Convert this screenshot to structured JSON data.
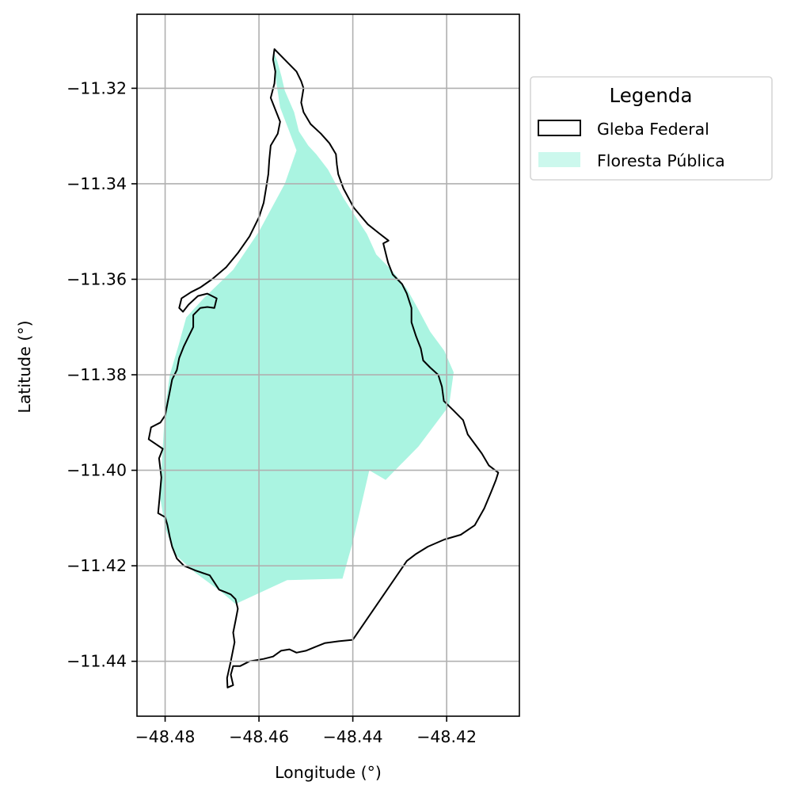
{
  "chart_data": {
    "type": "map",
    "xlabel": "Longitude (°)",
    "ylabel": "Latitude (°)",
    "xlim": [
      -48.486,
      -48.4045
    ],
    "ylim": [
      -11.4515,
      -11.3045
    ],
    "xticks": [
      -48.48,
      -48.46,
      -48.44,
      -48.42
    ],
    "xtick_labels": [
      "−48.48",
      "−48.46",
      "−48.44",
      "−48.42"
    ],
    "yticks": [
      -11.32,
      -11.34,
      -11.36,
      -11.38,
      -11.4,
      -11.42,
      -11.44
    ],
    "ytick_labels": [
      "−11.32",
      "−11.34",
      "−11.36",
      "−11.38",
      "−11.40",
      "−11.42",
      "−11.44"
    ],
    "grid": true,
    "legend": {
      "title": "Legenda",
      "placement": "outside upper right",
      "entries": [
        {
          "label": "Gleba Federal",
          "style": "outline"
        },
        {
          "label": "Floresta Pública",
          "style": "fill"
        }
      ]
    },
    "colors": {
      "gleba_edge": "#000000",
      "floresta_fill": "#aaf4e1",
      "floresta_legend": "#ccf8ed",
      "grid": "#b0b0b0"
    },
    "layers": [
      {
        "name": "Floresta Pública",
        "coords": [
          [
            -48.4569,
            -11.3123
          ],
          [
            -48.4561,
            -11.3143
          ],
          [
            -48.4552,
            -11.3175
          ],
          [
            -48.4545,
            -11.3205
          ],
          [
            -48.4525,
            -11.325
          ],
          [
            -48.4515,
            -11.329
          ],
          [
            -48.4495,
            -11.332
          ],
          [
            -48.4478,
            -11.3338
          ],
          [
            -48.4453,
            -11.337
          ],
          [
            -48.442,
            -11.343
          ],
          [
            -48.439,
            -11.3475
          ],
          [
            -48.437,
            -11.3505
          ],
          [
            -48.435,
            -11.3548
          ],
          [
            -48.4318,
            -11.358
          ],
          [
            -48.4285,
            -11.362
          ],
          [
            -48.4262,
            -11.366
          ],
          [
            -48.4235,
            -11.371
          ],
          [
            -48.4205,
            -11.375
          ],
          [
            -48.4185,
            -11.3795
          ],
          [
            -48.4195,
            -11.3865
          ],
          [
            -48.426,
            -11.395
          ],
          [
            -48.433,
            -11.402
          ],
          [
            -48.4365,
            -11.4
          ],
          [
            -48.44,
            -11.415
          ],
          [
            -48.4422,
            -11.4227
          ],
          [
            -48.454,
            -11.423
          ],
          [
            -48.465,
            -11.428
          ],
          [
            -48.468,
            -11.4255
          ],
          [
            -48.4735,
            -11.4215
          ],
          [
            -48.478,
            -11.4175
          ],
          [
            -48.48,
            -11.412
          ],
          [
            -48.481,
            -11.406
          ],
          [
            -48.4808,
            -11.4
          ],
          [
            -48.4805,
            -11.395
          ],
          [
            -48.48,
            -11.387
          ],
          [
            -48.479,
            -11.38
          ],
          [
            -48.4772,
            -11.374
          ],
          [
            -48.4755,
            -11.368
          ],
          [
            -48.4718,
            -11.364
          ],
          [
            -48.4655,
            -11.358
          ],
          [
            -48.46,
            -11.35
          ],
          [
            -48.4545,
            -11.34
          ],
          [
            -48.452,
            -11.333
          ],
          [
            -48.4555,
            -11.324
          ],
          [
            -48.4569,
            -11.315
          ]
        ]
      },
      {
        "name": "Gleba Federal",
        "coords": [
          [
            -48.4567,
            -11.3118
          ],
          [
            -48.4545,
            -11.314
          ],
          [
            -48.452,
            -11.3165
          ],
          [
            -48.451,
            -11.3185
          ],
          [
            -48.4505,
            -11.32
          ],
          [
            -48.451,
            -11.323
          ],
          [
            -48.4505,
            -11.325
          ],
          [
            -48.449,
            -11.3275
          ],
          [
            -48.4468,
            -11.3295
          ],
          [
            -48.445,
            -11.3315
          ],
          [
            -48.4436,
            -11.3338
          ],
          [
            -48.4434,
            -11.336
          ],
          [
            -48.4431,
            -11.338
          ],
          [
            -48.442,
            -11.341
          ],
          [
            -48.4398,
            -11.345
          ],
          [
            -48.4368,
            -11.3485
          ],
          [
            -48.4345,
            -11.3503
          ],
          [
            -48.4324,
            -11.3519
          ],
          [
            -48.4335,
            -11.3525
          ],
          [
            -48.4325,
            -11.3565
          ],
          [
            -48.4315,
            -11.359
          ],
          [
            -48.4295,
            -11.361
          ],
          [
            -48.4285,
            -11.363
          ],
          [
            -48.4275,
            -11.366
          ],
          [
            -48.4275,
            -11.369
          ],
          [
            -48.4265,
            -11.372
          ],
          [
            -48.4255,
            -11.3745
          ],
          [
            -48.425,
            -11.377
          ],
          [
            -48.4235,
            -11.3785
          ],
          [
            -48.4218,
            -11.38
          ],
          [
            -48.421,
            -11.3825
          ],
          [
            -48.4206,
            -11.3855
          ],
          [
            -48.4185,
            -11.3875
          ],
          [
            -48.4165,
            -11.3895
          ],
          [
            -48.4155,
            -11.3925
          ],
          [
            -48.414,
            -11.3945
          ],
          [
            -48.4125,
            -11.3965
          ],
          [
            -48.411,
            -11.399
          ],
          [
            -48.409,
            -11.4005
          ],
          [
            -48.4095,
            -11.402
          ],
          [
            -48.4105,
            -11.4045
          ],
          [
            -48.412,
            -11.408
          ],
          [
            -48.414,
            -11.4115
          ],
          [
            -48.417,
            -11.4135
          ],
          [
            -48.4205,
            -11.4145
          ],
          [
            -48.424,
            -11.416
          ],
          [
            -48.4265,
            -11.4175
          ],
          [
            -48.4285,
            -11.419
          ],
          [
            -48.44,
            -11.4355
          ],
          [
            -48.443,
            -11.4358
          ],
          [
            -48.446,
            -11.4362
          ],
          [
            -48.448,
            -11.437
          ],
          [
            -48.45,
            -11.4378
          ],
          [
            -48.452,
            -11.4382
          ],
          [
            -48.4535,
            -11.4375
          ],
          [
            -48.4553,
            -11.4378
          ],
          [
            -48.457,
            -11.439
          ],
          [
            -48.459,
            -11.4395
          ],
          [
            -48.462,
            -11.44
          ],
          [
            -48.464,
            -11.441
          ],
          [
            -48.4655,
            -11.441
          ],
          [
            -48.466,
            -11.4428
          ],
          [
            -48.4655,
            -11.445
          ],
          [
            -48.4667,
            -11.4455
          ],
          [
            -48.4668,
            -11.4435
          ],
          [
            -48.466,
            -11.44
          ],
          [
            -48.4652,
            -11.436
          ],
          [
            -48.4655,
            -11.434
          ],
          [
            -48.465,
            -11.4315
          ],
          [
            -48.4645,
            -11.429
          ],
          [
            -48.465,
            -11.427
          ],
          [
            -48.466,
            -11.426
          ],
          [
            -48.4672,
            -11.4255
          ],
          [
            -48.4685,
            -11.425
          ],
          [
            -48.4695,
            -11.4235
          ],
          [
            -48.4705,
            -11.422
          ],
          [
            -48.4735,
            -11.421
          ],
          [
            -48.476,
            -11.42
          ],
          [
            -48.4775,
            -11.4185
          ],
          [
            -48.4785,
            -11.416
          ],
          [
            -48.479,
            -11.414
          ],
          [
            -48.4795,
            -11.4115
          ],
          [
            -48.48,
            -11.4098
          ],
          [
            -48.4815,
            -11.409
          ],
          [
            -48.4812,
            -11.406
          ],
          [
            -48.4808,
            -11.4015
          ],
          [
            -48.4813,
            -11.3975
          ],
          [
            -48.4805,
            -11.3955
          ],
          [
            -48.482,
            -11.3945
          ],
          [
            -48.4835,
            -11.3935
          ],
          [
            -48.483,
            -11.391
          ],
          [
            -48.481,
            -11.39
          ],
          [
            -48.48,
            -11.3885
          ],
          [
            -48.4795,
            -11.386
          ],
          [
            -48.479,
            -11.3835
          ],
          [
            -48.4785,
            -11.381
          ],
          [
            -48.4775,
            -11.379
          ],
          [
            -48.477,
            -11.3765
          ],
          [
            -48.476,
            -11.374
          ],
          [
            -48.475,
            -11.372
          ],
          [
            -48.474,
            -11.37
          ],
          [
            -48.474,
            -11.3675
          ],
          [
            -48.4725,
            -11.366
          ],
          [
            -48.471,
            -11.3658
          ],
          [
            -48.4695,
            -11.366
          ],
          [
            -48.469,
            -11.364
          ],
          [
            -48.471,
            -11.363
          ],
          [
            -48.473,
            -11.3635
          ],
          [
            -48.475,
            -11.3653
          ],
          [
            -48.4762,
            -11.3668
          ],
          [
            -48.477,
            -11.366
          ],
          [
            -48.4765,
            -11.364
          ],
          [
            -48.4745,
            -11.3627
          ],
          [
            -48.4725,
            -11.3617
          ],
          [
            -48.47,
            -11.36
          ],
          [
            -48.467,
            -11.3575
          ],
          [
            -48.4645,
            -11.3545
          ],
          [
            -48.462,
            -11.351
          ],
          [
            -48.46,
            -11.347
          ],
          [
            -48.459,
            -11.344
          ],
          [
            -48.4585,
            -11.341
          ],
          [
            -48.458,
            -11.338
          ],
          [
            -48.4578,
            -11.335
          ],
          [
            -48.4575,
            -11.332
          ],
          [
            -48.456,
            -11.3295
          ],
          [
            -48.4555,
            -11.327
          ],
          [
            -48.4565,
            -11.3245
          ],
          [
            -48.4575,
            -11.322
          ],
          [
            -48.4567,
            -11.319
          ],
          [
            -48.4565,
            -11.3165
          ],
          [
            -48.457,
            -11.314
          ]
        ]
      }
    ]
  }
}
